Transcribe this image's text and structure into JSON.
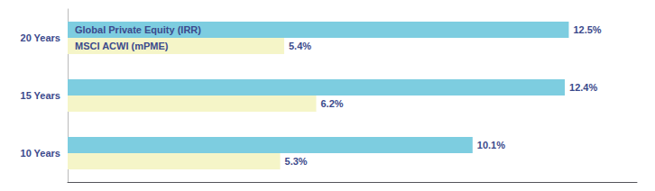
{
  "chart_data": {
    "type": "bar",
    "orientation": "horizontal",
    "categories": [
      "20 Years",
      "15 Years",
      "10 Years"
    ],
    "series": [
      {
        "name": "Global Private Equity (IRR)",
        "color": "#7DCDE0",
        "values": [
          12.5,
          12.4,
          10.1
        ],
        "value_labels": [
          "12.5%",
          "12.4%",
          "10.1%"
        ]
      },
      {
        "name": "MSCI ACWI (mPME)",
        "color": "#F5F5C8",
        "values": [
          5.4,
          6.2,
          5.3
        ],
        "value_labels": [
          "5.4%",
          "6.2%",
          "5.3%"
        ]
      }
    ],
    "xlim": [
      0,
      14.2
    ],
    "data_labels": true,
    "tick_labels": "y",
    "grid": false
  }
}
